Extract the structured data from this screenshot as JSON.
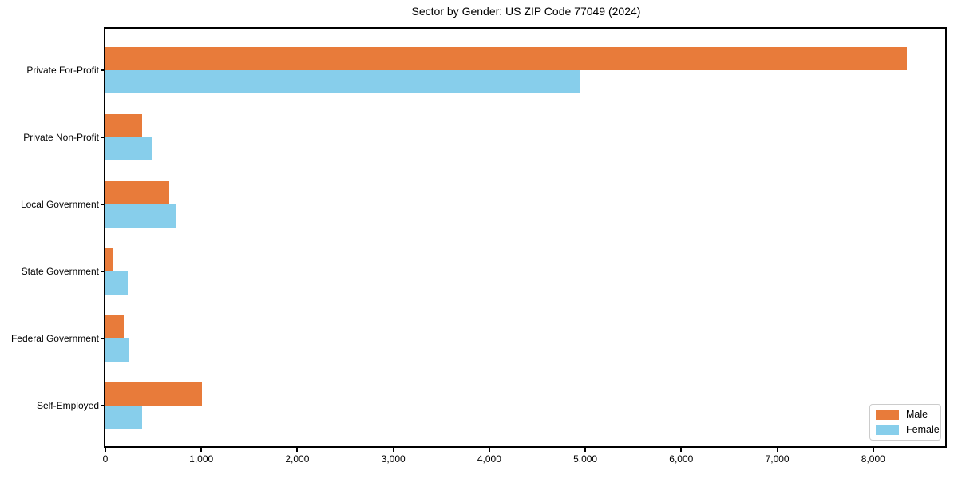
{
  "chart_data": {
    "type": "bar",
    "orientation": "horizontal",
    "title": "Sector by Gender: US ZIP Code 77049 (2024)",
    "categories": [
      "Private For-Profit",
      "Private Non-Profit",
      "Local Government",
      "State Government",
      "Federal Government",
      "Self-Employed"
    ],
    "series": [
      {
        "name": "Male",
        "color": "#e87b3a",
        "values": [
          8350,
          380,
          665,
          85,
          195,
          1005
        ]
      },
      {
        "name": "Female",
        "color": "#87ceeb",
        "values": [
          4950,
          480,
          740,
          235,
          245,
          380
        ]
      }
    ],
    "xlabel": "",
    "ylabel": "",
    "xlim": [
      0,
      8767
    ],
    "xticks": [
      0,
      1000,
      2000,
      3000,
      4000,
      5000,
      6000,
      7000,
      8000
    ],
    "xtick_labels": [
      "0",
      "1,000",
      "2,000",
      "3,000",
      "4,000",
      "5,000",
      "6,000",
      "7,000",
      "8,000"
    ],
    "grid": false,
    "legend_position": "lower right"
  },
  "colors": {
    "background": "#ffffff",
    "spine": "#000000",
    "text": "#000000",
    "legend_border": "#cccccc",
    "male": "#e87b3a",
    "female": "#87ceeb"
  }
}
